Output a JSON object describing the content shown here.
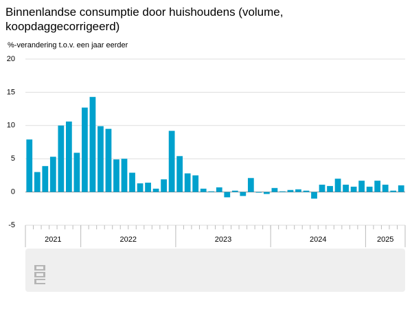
{
  "chart_data": {
    "type": "bar",
    "title": "Binnenlandse consumptie door huishoudens (volume, koopdaggecorrigeerd)",
    "subtitle": "%-verandering t.o.v. een jaar eerder",
    "categories": [
      null,
      null,
      null,
      null,
      null,
      null,
      null,
      null,
      null,
      null,
      null,
      null,
      null,
      null,
      null,
      null,
      null,
      null,
      null,
      null,
      null,
      null,
      null,
      null,
      null,
      null,
      null,
      null,
      null,
      null,
      null,
      null,
      null,
      null,
      null,
      null,
      null,
      null,
      null,
      null,
      null,
      null,
      null,
      null,
      null,
      null,
      null,
      null
    ],
    "x_groups": [
      {
        "label": "2021",
        "months": 7
      },
      {
        "label": "2022",
        "months": 12
      },
      {
        "label": "2023",
        "months": 12
      },
      {
        "label": "2024",
        "months": 12
      },
      {
        "label": "2025",
        "months": 5
      }
    ],
    "values": [
      7.9,
      3.0,
      3.9,
      5.3,
      10.0,
      10.6,
      5.9,
      12.7,
      14.3,
      9.9,
      9.5,
      4.9,
      5.0,
      2.9,
      1.3,
      1.4,
      0.5,
      1.9,
      9.2,
      5.4,
      2.8,
      2.5,
      0.5,
      0.1,
      0.7,
      -0.8,
      0.2,
      -0.6,
      2.1,
      -0.1,
      -0.3,
      0.6,
      0.1,
      0.3,
      0.4,
      0.2,
      -1.0,
      1.1,
      0.9,
      2.0,
      1.1,
      0.8,
      1.7,
      0.8,
      1.7,
      1.1,
      0.2,
      1.0
    ],
    "color": "#00a1cd",
    "ylim": [
      -5,
      20
    ],
    "yticks": [
      -5,
      0,
      5,
      10,
      15,
      20
    ],
    "grid": true
  }
}
